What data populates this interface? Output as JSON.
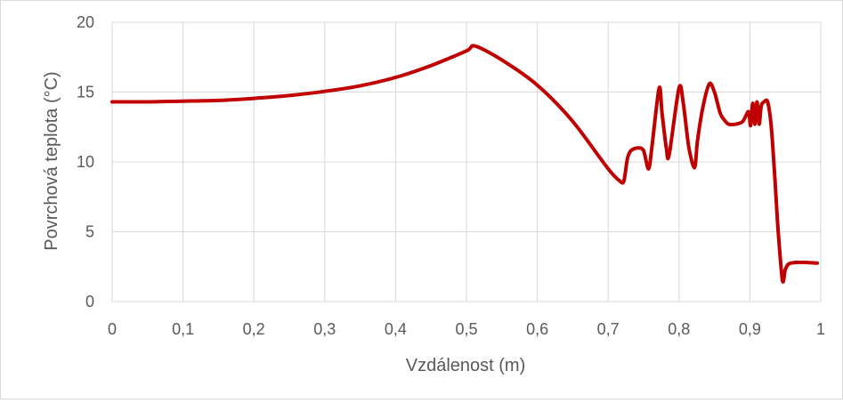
{
  "chart_data": {
    "type": "line",
    "title": "",
    "xlabel": "Vzdálenost (m)",
    "ylabel": "Povrchová teplota (°C)",
    "xlim": [
      0,
      1
    ],
    "ylim": [
      0,
      20
    ],
    "x_ticks": [
      "0",
      "0,1",
      "0,2",
      "0,3",
      "0,4",
      "0,5",
      "0,6",
      "0,7",
      "0,8",
      "0,9",
      "1"
    ],
    "y_ticks": [
      "0",
      "5",
      "10",
      "15",
      "20"
    ],
    "grid": true,
    "legend": "none",
    "series": [
      {
        "color": "#c00000",
        "x": [
          0,
          0.05,
          0.1,
          0.15,
          0.2,
          0.25,
          0.3,
          0.35,
          0.4,
          0.45,
          0.5,
          0.512,
          0.55,
          0.6,
          0.65,
          0.7,
          0.715,
          0.722,
          0.727,
          0.732,
          0.742,
          0.75,
          0.757,
          0.762,
          0.772,
          0.776,
          0.782,
          0.786,
          0.8,
          0.806,
          0.814,
          0.822,
          0.826,
          0.834,
          0.843,
          0.85,
          0.858,
          0.864,
          0.87,
          0.88,
          0.89,
          0.898,
          0.901,
          0.904,
          0.907,
          0.91,
          0.913,
          0.916,
          0.92,
          0.925,
          0.93,
          0.935,
          0.94,
          0.946,
          0.95,
          0.955,
          0.965,
          0.98,
          0.995
        ],
        "y": [
          14.3,
          14.3,
          14.35,
          14.4,
          14.55,
          14.75,
          15.05,
          15.45,
          16.05,
          16.9,
          17.95,
          18.3,
          17.3,
          15.5,
          12.9,
          9.5,
          8.7,
          8.6,
          10.2,
          10.8,
          11.0,
          10.8,
          9.5,
          11.2,
          15.3,
          13.5,
          11.0,
          10.5,
          15.3,
          14.2,
          11.0,
          9.6,
          11.5,
          14.0,
          15.6,
          15.0,
          13.5,
          13.0,
          12.7,
          12.7,
          12.9,
          13.6,
          12.6,
          14.2,
          12.7,
          14.3,
          12.7,
          14.0,
          14.3,
          14.3,
          12.6,
          9.0,
          5.0,
          1.5,
          2.3,
          2.7,
          2.8,
          2.8,
          2.75
        ]
      }
    ]
  }
}
